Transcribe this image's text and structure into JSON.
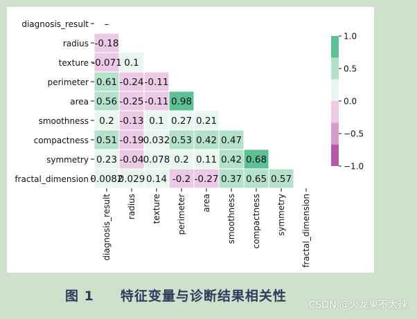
{
  "chart_data": {
    "type": "heatmap",
    "variables": [
      "diagnosis_result",
      "radius",
      "texture",
      "perimeter",
      "area",
      "smoothness",
      "compactness",
      "symmetry",
      "fractal_dimension"
    ],
    "matrix": [
      [],
      [
        -0.18
      ],
      [
        -0.071,
        0.1
      ],
      [
        0.61,
        -0.24,
        -0.11
      ],
      [
        0.56,
        -0.25,
        -0.11,
        0.98
      ],
      [
        0.2,
        -0.13,
        0.1,
        0.27,
        0.21
      ],
      [
        0.51,
        -0.19,
        0.032,
        0.53,
        0.42,
        0.47
      ],
      [
        0.23,
        -0.04,
        0.078,
        0.2,
        0.11,
        0.42,
        0.68
      ],
      [
        0.0082,
        0.029,
        0.14,
        -0.2,
        -0.27,
        0.37,
        0.65,
        0.57
      ]
    ],
    "labels": [
      [
        "–"
      ],
      [
        "-0.18"
      ],
      [
        "-0.071",
        "0.1"
      ],
      [
        "0.61",
        "-0.24",
        "-0.11"
      ],
      [
        "0.56",
        "-0.25",
        "-0.11",
        "0.98"
      ],
      [
        "0.2",
        "-0.13",
        "0.1",
        "0.27",
        "0.21"
      ],
      [
        "0.51",
        "-0.19",
        "0.032",
        "0.53",
        "0.42",
        "0.47"
      ],
      [
        "0.23",
        "-0.04",
        "0.078",
        "0.2",
        "0.11",
        "0.42",
        "0.68"
      ],
      [
        "0.0082",
        "0.029",
        "0.14",
        "-0.2",
        "-0.27",
        "0.37",
        "0.65",
        "0.57"
      ]
    ],
    "vmin": -1.0,
    "vmax": 1.0,
    "colorbar": {
      "ticks": [
        1.0,
        0.5,
        0.0,
        -0.5,
        -1.0
      ],
      "tick_labels": [
        "1.0",
        "0.5",
        "0.0",
        "−0.5",
        "−1.0"
      ],
      "levels": [
        {
          "min": -1.0,
          "max": -0.667,
          "color": "#b35aa8"
        },
        {
          "min": -0.667,
          "max": -0.333,
          "color": "#d79bcd"
        },
        {
          "min": -0.333,
          "max": 0.0,
          "color": "#ecc9e4"
        },
        {
          "min": 0.0,
          "max": 0.333,
          "color": "#e9f5ef"
        },
        {
          "min": 0.333,
          "max": 0.667,
          "color": "#b4e0cc"
        },
        {
          "min": 0.667,
          "max": 1.0,
          "color": "#5ec095"
        }
      ]
    },
    "mask": "upper-triangle"
  },
  "caption": "图 1     特征变量与诊断结果相关性",
  "watermark": "CSDN @火龙果不太辣"
}
